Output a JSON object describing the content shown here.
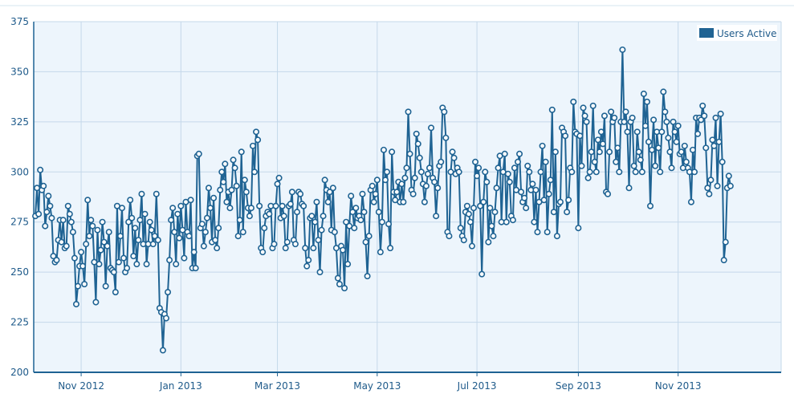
{
  "chart_data": {
    "type": "line",
    "title": "",
    "xlabel": "",
    "ylabel": "",
    "ylim": [
      200,
      375
    ],
    "yticks": [
      200,
      225,
      250,
      275,
      300,
      325,
      350,
      375
    ],
    "xlim": [
      "2012-10-03",
      "2014-01-03"
    ],
    "xtick_labels": [
      {
        "label": "Nov 2012",
        "date": "2012-11-01"
      },
      {
        "label": "Jan 2013",
        "date": "2013-01-01"
      },
      {
        "label": "Mar 2013",
        "date": "2013-03-01"
      },
      {
        "label": "May 2013",
        "date": "2013-05-01"
      },
      {
        "label": "Jul 2013",
        "date": "2013-07-01"
      },
      {
        "label": "Sep 2013",
        "date": "2013-09-01"
      },
      {
        "label": "Nov 2013",
        "date": "2013-11-01"
      }
    ],
    "grid": true,
    "legend": {
      "position": "top-right",
      "entries": [
        "Users Active"
      ]
    },
    "colors": {
      "line": "#1f6393",
      "plot_bg": "#edf5fc",
      "grid": "#c5d8ea",
      "axis_text": "#1e5a8a",
      "axis_line": "#1f6393"
    },
    "series": [
      {
        "name": "Users Active",
        "start_date": "2012-10-04",
        "values": [
          278,
          292,
          279,
          301,
          291,
          293,
          273,
          280,
          288,
          283,
          277,
          258,
          255,
          256,
          266,
          276,
          265,
          276,
          262,
          263,
          283,
          279,
          275,
          270,
          257,
          234,
          243,
          253,
          260,
          253,
          244,
          264,
          286,
          268,
          276,
          273,
          255,
          235,
          271,
          254,
          261,
          275,
          265,
          243,
          263,
          270,
          252,
          251,
          250,
          240,
          283,
          255,
          268,
          282,
          257,
          250,
          252,
          275,
          286,
          277,
          258,
          272,
          254,
          266,
          276,
          289,
          264,
          279,
          254,
          264,
          275,
          271,
          264,
          268,
          289,
          266,
          232,
          230,
          211,
          229,
          227,
          240,
          256,
          276,
          282,
          270,
          254,
          279,
          267,
          283,
          271,
          257,
          285,
          270,
          268,
          286,
          252,
          260,
          252,
          308,
          309,
          272,
          274,
          263,
          270,
          277,
          292,
          282,
          265,
          287,
          266,
          262,
          272,
          291,
          300,
          295,
          304,
          285,
          290,
          282,
          291,
          306,
          302,
          293,
          268,
          276,
          310,
          270,
          296,
          290,
          282,
          278,
          282,
          313,
          300,
          320,
          316,
          283,
          262,
          260,
          272,
          278,
          280,
          279,
          283,
          262,
          264,
          283,
          294,
          297,
          277,
          283,
          278,
          262,
          265,
          283,
          284,
          290,
          266,
          264,
          280,
          290,
          289,
          284,
          283,
          262,
          253,
          256,
          277,
          278,
          262,
          275,
          285,
          266,
          250,
          271,
          278,
          296,
          291,
          285,
          290,
          271,
          292,
          270,
          262,
          247,
          244,
          263,
          261,
          242,
          275,
          254,
          273,
          288,
          280,
          272,
          282,
          277,
          278,
          276,
          289,
          280,
          265,
          248,
          268,
          291,
          293,
          285,
          289,
          296,
          280,
          260,
          275,
          311,
          296,
          300,
          274,
          262,
          310,
          290,
          286,
          290,
          295,
          285,
          294,
          285,
          297,
          302,
          330,
          309,
          291,
          289,
          297,
          319,
          314,
          307,
          300,
          294,
          285,
          293,
          299,
          302,
          322,
          297,
          295,
          278,
          292,
          303,
          305,
          332,
          330,
          317,
          270,
          268,
          300,
          310,
          307,
          299,
          302,
          300,
          272,
          268,
          266,
          280,
          283,
          279,
          275,
          263,
          282,
          305,
          298,
          302,
          283,
          249,
          285,
          300,
          295,
          265,
          282,
          273,
          268,
          280,
          292,
          302,
          308,
          275,
          300,
          309,
          275,
          299,
          295,
          278,
          276,
          302,
          291,
          305,
          309,
          290,
          285,
          287,
          282,
          303,
          300,
          291,
          294,
          275,
          291,
          270,
          285,
          300,
          313,
          286,
          305,
          270,
          289,
          296,
          331,
          280,
          310,
          268,
          284,
          285,
          322,
          320,
          318,
          280,
          286,
          302,
          300,
          335,
          320,
          319,
          272,
          318,
          303,
          332,
          328,
          325,
          297,
          300,
          310,
          333,
          305,
          300,
          316,
          310,
          320,
          314,
          328,
          290,
          289,
          310,
          330,
          325,
          327,
          305,
          312,
          300,
          325,
          361,
          325,
          330,
          320,
          292,
          325,
          327,
          303,
          300,
          320,
          310,
          306,
          300,
          339,
          323,
          335,
          315,
          283,
          311,
          326,
          303,
          320,
          312,
          300,
          320,
          340,
          330,
          325,
          317,
          310,
          302,
          325,
          320,
          315,
          323,
          309,
          310,
          302,
          313,
          305,
          302,
          300,
          285,
          311,
          300,
          327,
          319,
          327,
          326,
          333,
          328,
          312,
          292,
          289,
          296,
          316,
          313,
          327,
          293,
          315,
          329,
          305,
          256,
          265,
          292,
          298,
          293
        ]
      }
    ]
  }
}
